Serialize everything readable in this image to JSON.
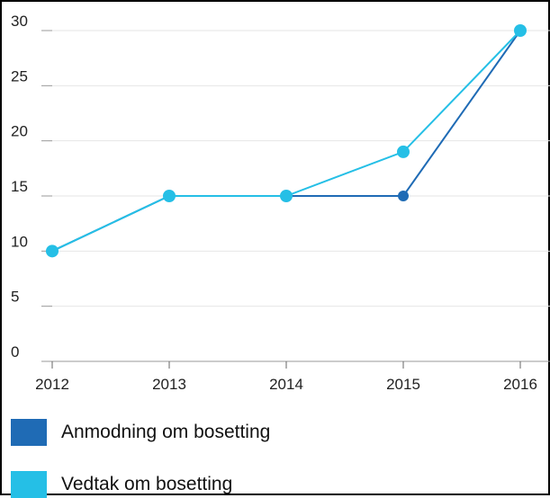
{
  "chart_data": {
    "type": "line",
    "x": [
      "2012",
      "2013",
      "2014",
      "2015",
      "2016"
    ],
    "yticks": [
      0,
      5,
      10,
      15,
      20,
      25,
      30
    ],
    "ylim": [
      0,
      30
    ],
    "grid": true,
    "legend_position": "bottom",
    "series": [
      {
        "name": "Anmodning om bosetting",
        "color": "#1f6bb5",
        "values": [
          10,
          15,
          15,
          15,
          30
        ]
      },
      {
        "name": "Vedtak om bosetting",
        "color": "#25bfe6",
        "values": [
          10,
          15,
          15,
          19,
          30
        ]
      }
    ]
  }
}
